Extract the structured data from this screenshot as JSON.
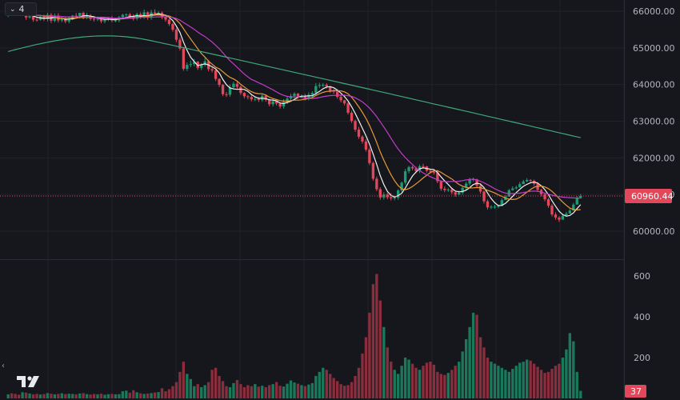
{
  "header": {
    "indicator_count": "4"
  },
  "colors": {
    "bg": "#16171c",
    "grid": "#22232a",
    "up": "#1f9a72",
    "down": "#e2475a",
    "up_vol": "#197a5b",
    "down_vol": "#8a2d3c",
    "ma_fast": "#f0f0f0",
    "ma_mid": "#e89a3a",
    "ma_slow": "#c23cc8",
    "ma_long": "#3fa878",
    "price_line": "#e2475a",
    "axis_text": "#b2b5be"
  },
  "icons": {
    "indicator_toggle": "chevron-down-icon",
    "scroll_left": "chevron-left-icon",
    "logo": "tradingview-logo-icon"
  },
  "price_axis": {
    "ticks": [
      "66000.00",
      "65000.00",
      "64000.00",
      "63000.00",
      "62000.00",
      "61000.00",
      "60000.00"
    ]
  },
  "volume_axis": {
    "ticks": [
      "600",
      "400",
      "200"
    ]
  },
  "last_price": {
    "label": "60960.44",
    "value": 60960.44
  },
  "last_volume": {
    "label": "37",
    "value": 37
  },
  "chart_data": {
    "type": "candlestick",
    "price_range": [
      59550,
      66300
    ],
    "volume_range": [
      0,
      640
    ],
    "closes": [
      65966,
      65960,
      65941,
      65940,
      65960,
      65830,
      65860,
      65769,
      65766,
      65855,
      65780,
      65902,
      65740,
      65882,
      65749,
      65784,
      65722,
      65814,
      65879,
      65866,
      65954,
      65838,
      65877,
      65793,
      65773,
      65799,
      65724,
      65794,
      65814,
      65745,
      65750,
      65836,
      65899,
      65912,
      65859,
      65799,
      65921,
      65846,
      65970,
      65822,
      65967,
      65938,
      65960,
      65832,
      65770,
      65651,
      65495,
      65221,
      64982,
      64427,
      64536,
      64557,
      64622,
      64453,
      64544,
      64632,
      64419,
      64386,
      64154,
      63991,
      63735,
      63723,
      63924,
      64022,
      63937,
      63772,
      63679,
      63663,
      63596,
      63607,
      63579,
      63695,
      63586,
      63462,
      63543,
      63483,
      63401,
      63523,
      63616,
      63689,
      63753,
      63678,
      63683,
      63625,
      63720,
      63770,
      63960,
      63983,
      63992,
      63951,
      63830,
      63808,
      63665,
      63570,
      63487,
      63231,
      63006,
      62770,
      62578,
      62447,
      62226,
      61859,
      61431,
      61145,
      60921,
      61000,
      60927,
      60897,
      60917,
      61111,
      61323,
      61635,
      61750,
      61713,
      61642,
      61771,
      61766,
      61650,
      61625,
      61599,
      61361,
      61159,
      61122,
      61133,
      61061,
      60998,
      61051,
      61184,
      61298,
      61409,
      61415,
      61240,
      61081,
      60816,
      60651,
      60667,
      60669,
      60686,
      60846,
      60942,
      61119,
      61166,
      61194,
      61284,
      61358,
      61396,
      61374,
      61296,
      61127,
      61007,
      60872,
      60697,
      60457,
      60373,
      60314,
      60420,
      60479,
      60562,
      60725,
      60900,
      60960
    ],
    "opens": [
      65900,
      65966,
      65960,
      65941,
      65940,
      65960,
      65830,
      65860,
      65769,
      65766,
      65855,
      65780,
      65902,
      65740,
      65882,
      65749,
      65784,
      65722,
      65814,
      65879,
      65866,
      65954,
      65838,
      65877,
      65793,
      65773,
      65799,
      65724,
      65794,
      65814,
      65745,
      65750,
      65836,
      65899,
      65912,
      65859,
      65799,
      65921,
      65846,
      65970,
      65822,
      65967,
      65938,
      65960,
      65832,
      65770,
      65651,
      65495,
      65221,
      64982,
      64427,
      64536,
      64557,
      64622,
      64453,
      64544,
      64632,
      64419,
      64386,
      64154,
      63991,
      63735,
      63723,
      63924,
      64022,
      63937,
      63772,
      63679,
      63663,
      63596,
      63607,
      63579,
      63695,
      63586,
      63462,
      63543,
      63483,
      63401,
      63523,
      63616,
      63689,
      63753,
      63678,
      63683,
      63625,
      63720,
      63770,
      63960,
      63983,
      63992,
      63951,
      63830,
      63808,
      63665,
      63570,
      63487,
      63231,
      63006,
      62770,
      62578,
      62447,
      62226,
      61859,
      61431,
      61145,
      60921,
      61000,
      60927,
      60897,
      60917,
      61111,
      61323,
      61635,
      61750,
      61713,
      61642,
      61771,
      61766,
      61650,
      61625,
      61599,
      61361,
      61159,
      61122,
      61133,
      61061,
      60998,
      61051,
      61184,
      61298,
      61409,
      61415,
      61240,
      61081,
      60816,
      60651,
      60667,
      60669,
      60686,
      60846,
      60942,
      61119,
      61166,
      61194,
      61284,
      61358,
      61396,
      61374,
      61296,
      61127,
      61007,
      60872,
      60697,
      60457,
      60373,
      60314,
      60420,
      60479,
      60562,
      60725,
      60900
    ],
    "highs": [
      66036,
      66054,
      66034,
      66029,
      66060,
      66047,
      65894,
      65928,
      65827,
      65896,
      65906,
      65960,
      65951,
      65940,
      65947,
      65831,
      65850,
      65863,
      65899,
      65951,
      65928,
      65986,
      65951,
      65919,
      65858,
      65852,
      65846,
      65812,
      65844,
      65872,
      65789,
      65871,
      65935,
      65945,
      65958,
      65920,
      65962,
      65973,
      66046,
      65993,
      66035,
      66051,
      66005,
      65996,
      65880,
      65794,
      65686,
      65539,
      65280,
      65026,
      64598,
      64651,
      64697,
      64642,
      64589,
      64726,
      64674,
      64477,
      64418,
      64168,
      64016,
      63794,
      63998,
      64076,
      64077,
      63974,
      63794,
      63716,
      63722,
      63664,
      63662,
      63749,
      63732,
      63609,
      63632,
      63562,
      63517,
      63601,
      63665,
      63752,
      63790,
      63769,
      63729,
      63744,
      63786,
      63815,
      64040,
      64050,
      64042,
      64036,
      63964,
      63879,
      63870,
      63701,
      63584,
      63526,
      63285,
      63047,
      62844,
      62619,
      62509,
      62281,
      61898,
      61491,
      61199,
      61062,
      61048,
      61036,
      60962,
      61145,
      61353,
      61699,
      61782,
      61791,
      61756,
      61822,
      61838,
      61778,
      61680,
      61669,
      61642,
      61386,
      61224,
      61177,
      61186,
      61099,
      61110,
      61212,
      61346,
      61457,
      61464,
      61432,
      61298,
      61112,
      60862,
      60707,
      60720,
      60722,
      60898,
      60989,
      61152,
      61222,
      61244,
      61341,
      61403,
      61445,
      61420,
      61407,
      61339,
      61155,
      61049,
      60911,
      60745,
      60518,
      60406,
      60482,
      60531,
      60613,
      60773,
      60955,
      61015
    ],
    "lows": [
      65842,
      65908,
      65889,
      65878,
      65896,
      65765,
      65799,
      65712,
      65717,
      65741,
      65734,
      65719,
      65677,
      65697,
      65691,
      65700,
      65670,
      65668,
      65758,
      65813,
      65801,
      65781,
      65779,
      65742,
      65716,
      65732,
      65676,
      65671,
      65730,
      65695,
      65697,
      65693,
      65788,
      65849,
      65807,
      65742,
      65751,
      65789,
      65790,
      65763,
      65765,
      65882,
      65882,
      65779,
      65712,
      65598,
      65441,
      65158,
      64927,
      64375,
      64368,
      64472,
      64497,
      64398,
      64392,
      64487,
      64362,
      64331,
      64097,
      63931,
      63682,
      63661,
      63668,
      63868,
      63883,
      63716,
      63622,
      63596,
      63540,
      63546,
      63523,
      63529,
      63531,
      63404,
      63400,
      63427,
      63342,
      63343,
      63468,
      63558,
      63628,
      63619,
      63625,
      63566,
      63566,
      63663,
      63716,
      63902,
      63928,
      63893,
      63776,
      63746,
      63613,
      63513,
      63433,
      63180,
      62953,
      62713,
      62519,
      62389,
      62171,
      61804,
      61376,
      61091,
      60859,
      60865,
      60873,
      60837,
      60843,
      60856,
      61054,
      61264,
      61576,
      61657,
      61584,
      61586,
      61705,
      61598,
      61568,
      61544,
      61308,
      61102,
      61064,
      61070,
      61005,
      60939,
      60990,
      60993,
      61126,
      61242,
      61356,
      61185,
      61024,
      60755,
      60593,
      60605,
      60609,
      60628,
      60787,
      60884,
      61058,
      61106,
      61136,
      61225,
      61299,
      61338,
      61317,
      61238,
      61070,
      60949,
      60815,
      60638,
      60400,
      60313,
      60255,
      60362,
      60420,
      60503,
      60666,
      60845,
      60904
    ],
    "volumes": [
      20,
      25,
      22,
      18,
      30,
      28,
      24,
      20,
      22,
      19,
      21,
      26,
      23,
      20,
      22,
      25,
      21,
      23,
      22,
      20,
      24,
      26,
      21,
      19,
      22,
      20,
      23,
      18,
      21,
      22,
      20,
      21,
      35,
      38,
      28,
      40,
      30,
      25,
      22,
      24,
      26,
      29,
      31,
      50,
      35,
      45,
      60,
      80,
      130,
      180,
      120,
      95,
      60,
      70,
      55,
      65,
      80,
      140,
      150,
      110,
      85,
      60,
      55,
      75,
      90,
      70,
      55,
      65,
      60,
      70,
      58,
      62,
      55,
      65,
      70,
      80,
      62,
      58,
      72,
      88,
      78,
      72,
      65,
      60,
      68,
      75,
      110,
      130,
      150,
      140,
      120,
      100,
      85,
      70,
      62,
      65,
      80,
      110,
      150,
      220,
      300,
      420,
      560,
      610,
      480,
      350,
      250,
      180,
      140,
      120,
      160,
      200,
      190,
      170,
      150,
      140,
      160,
      175,
      180,
      165,
      130,
      120,
      115,
      125,
      140,
      160,
      180,
      230,
      290,
      350,
      420,
      410,
      300,
      250,
      200,
      180,
      170,
      160,
      150,
      140,
      130,
      145,
      160,
      175,
      180,
      190,
      185,
      170,
      155,
      140,
      125,
      130,
      145,
      160,
      170,
      200,
      240,
      320,
      280,
      130,
      37
    ]
  }
}
